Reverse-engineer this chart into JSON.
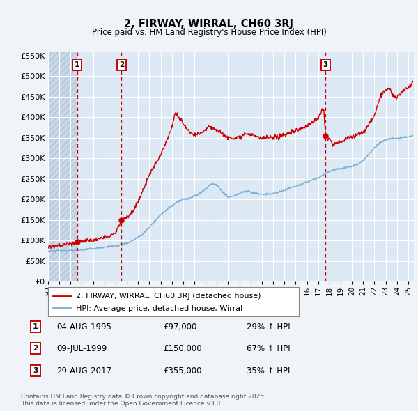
{
  "title": "2, FIRWAY, WIRRAL, CH60 3RJ",
  "subtitle": "Price paid vs. HM Land Registry's House Price Index (HPI)",
  "ylim": [
    0,
    560000
  ],
  "yticks": [
    0,
    50000,
    100000,
    150000,
    200000,
    250000,
    300000,
    350000,
    400000,
    450000,
    500000,
    550000
  ],
  "ytick_labels": [
    "£0",
    "£50K",
    "£100K",
    "£150K",
    "£200K",
    "£250K",
    "£300K",
    "£350K",
    "£400K",
    "£450K",
    "£500K",
    "£550K"
  ],
  "xmin": 1993.0,
  "xmax": 2025.5,
  "sale1_date": 1995.58,
  "sale1_price": 97000,
  "sale2_date": 1999.52,
  "sale2_price": 150000,
  "sale3_date": 2017.65,
  "sale3_price": 355000,
  "line_color_property": "#cc0000",
  "line_color_hpi": "#7ab0d4",
  "plot_bg_color": "#dce9f5",
  "hatch_bg": "#c8d8e8",
  "grid_color": "#ffffff",
  "fig_bg": "#f0f4f8",
  "footer_text": "Contains HM Land Registry data © Crown copyright and database right 2025.\nThis data is licensed under the Open Government Licence v3.0.",
  "legend_label1": "2, FIRWAY, WIRRAL, CH60 3RJ (detached house)",
  "legend_label2": "HPI: Average price, detached house, Wirral",
  "table_rows": [
    [
      "1",
      "04-AUG-1995",
      "£97,000",
      "29% ↑ HPI"
    ],
    [
      "2",
      "09-JUL-1999",
      "£150,000",
      "67% ↑ HPI"
    ],
    [
      "3",
      "29-AUG-2017",
      "£355,000",
      "35% ↑ HPI"
    ]
  ]
}
